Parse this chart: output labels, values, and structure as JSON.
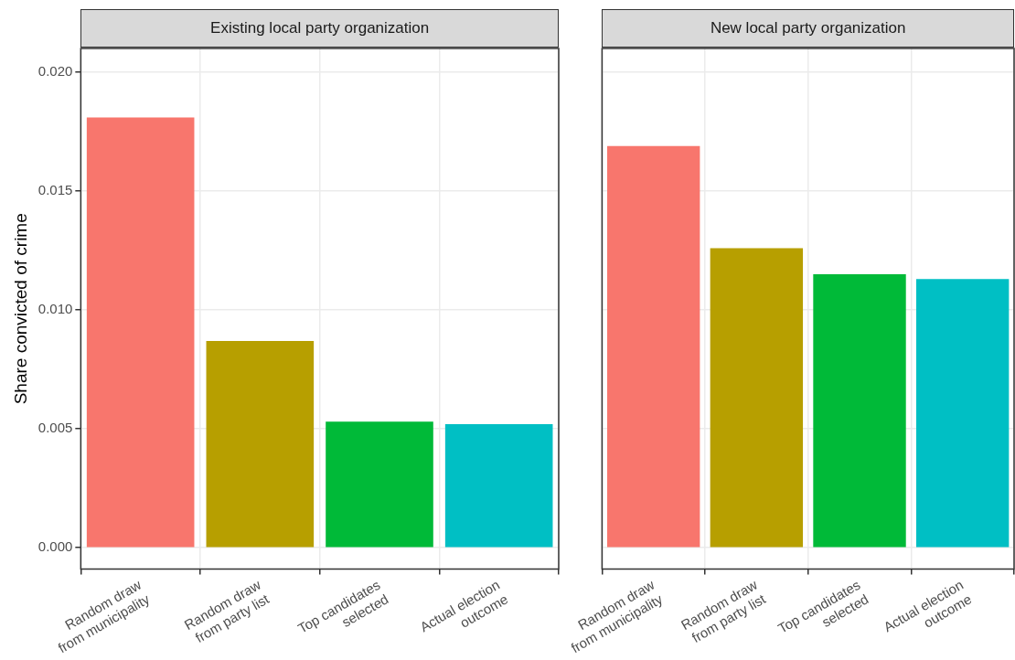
{
  "chart_data": [
    {
      "type": "bar",
      "title": "Existing local party organization",
      "ylabel": "Share convicted of crime",
      "categories": [
        "Random draw\nfrom municipality",
        "Random draw\nfrom party list",
        "Top candidates\nselected",
        "Actual election\noutcome"
      ],
      "values": [
        0.0181,
        0.0087,
        0.0053,
        0.0052
      ],
      "colors": [
        "#f8766d",
        "#b79f00",
        "#00ba38",
        "#00bfc4"
      ],
      "ylim": [
        -0.0009,
        0.021
      ],
      "yticks": [
        {
          "value": 0,
          "label": "0.000"
        },
        {
          "value": 0.005,
          "label": "0.005"
        },
        {
          "value": 0.01,
          "label": "0.010"
        },
        {
          "value": 0.015,
          "label": "0.015"
        },
        {
          "value": 0.02,
          "label": "0.020"
        }
      ],
      "grid": true,
      "legend": false
    },
    {
      "type": "bar",
      "title": "New local party organization",
      "categories": [
        "Random draw\nfrom municipality",
        "Random draw\nfrom party list",
        "Top candidates\nselected",
        "Actual election\noutcome"
      ],
      "values": [
        0.0169,
        0.0126,
        0.0115,
        0.0113
      ],
      "colors": [
        "#f8766d",
        "#b79f00",
        "#00ba38",
        "#00bfc4"
      ],
      "ylim": [
        -0.0009,
        0.021
      ],
      "yticks": [
        0,
        0.005,
        0.01,
        0.015,
        0.02
      ],
      "grid": true,
      "legend": false,
      "tick_labels": "x"
    }
  ]
}
